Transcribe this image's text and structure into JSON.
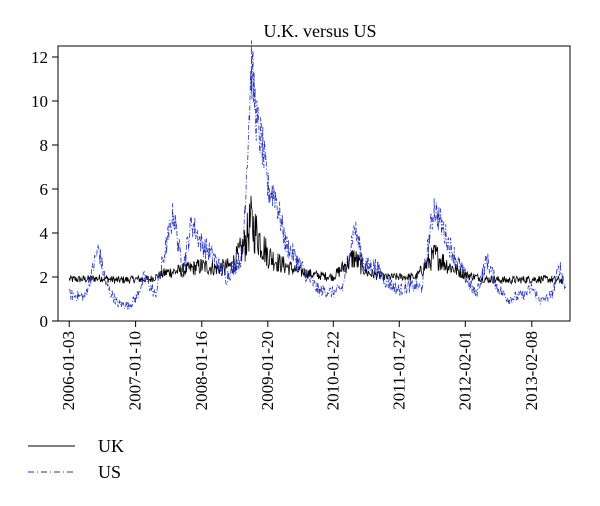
{
  "chart_data": {
    "type": "line",
    "title": "U.K. versus US",
    "xlabel": "",
    "ylabel": "",
    "ylim": [
      0,
      12.5
    ],
    "yticks": [
      0,
      2,
      4,
      6,
      8,
      10,
      12
    ],
    "xlim": [
      "2005-11-01",
      "2013-09-10"
    ],
    "xticks": [
      "2006-01-03",
      "2007-01-10",
      "2008-01-16",
      "2009-01-20",
      "2010-01-22",
      "2011-01-27",
      "2012-02-01",
      "2013-02-08"
    ],
    "grid": false,
    "legend_position": "bottom-left",
    "series": [
      {
        "name": "UK",
        "color": "#000000",
        "style": "solid",
        "points": [
          [
            "2006-01-03",
            1.9
          ],
          [
            "2006-04-01",
            1.9
          ],
          [
            "2006-07-01",
            1.95
          ],
          [
            "2006-10-01",
            1.85
          ],
          [
            "2007-01-10",
            1.9
          ],
          [
            "2007-04-01",
            1.9
          ],
          [
            "2007-07-01",
            2.2
          ],
          [
            "2007-10-01",
            2.3
          ],
          [
            "2008-01-16",
            2.5
          ],
          [
            "2008-04-01",
            2.4
          ],
          [
            "2008-07-01",
            2.5
          ],
          [
            "2008-09-15",
            3.5
          ],
          [
            "2008-10-15",
            4.5
          ],
          [
            "2008-12-01",
            3.8
          ],
          [
            "2009-01-20",
            3.0
          ],
          [
            "2009-04-01",
            2.6
          ],
          [
            "2009-07-01",
            2.3
          ],
          [
            "2009-10-01",
            2.1
          ],
          [
            "2010-01-22",
            2.0
          ],
          [
            "2010-05-15",
            2.9
          ],
          [
            "2010-08-01",
            2.2
          ],
          [
            "2010-11-01",
            2.0
          ],
          [
            "2011-01-27",
            2.0
          ],
          [
            "2011-05-01",
            2.0
          ],
          [
            "2011-08-15",
            3.0
          ],
          [
            "2011-11-01",
            2.5
          ],
          [
            "2012-02-01",
            2.1
          ],
          [
            "2012-06-01",
            1.9
          ],
          [
            "2012-10-01",
            1.85
          ],
          [
            "2013-02-08",
            1.9
          ],
          [
            "2013-05-01",
            1.9
          ],
          [
            "2013-08-01",
            1.85
          ]
        ]
      },
      {
        "name": "US",
        "color": "#1f2fbf",
        "style": "dashdot",
        "points": [
          [
            "2006-01-03",
            1.2
          ],
          [
            "2006-04-01",
            1.1
          ],
          [
            "2006-06-15",
            3.3
          ],
          [
            "2006-08-01",
            1.6
          ],
          [
            "2006-10-01",
            0.8
          ],
          [
            "2006-12-01",
            0.7
          ],
          [
            "2007-01-10",
            1.0
          ],
          [
            "2007-03-01",
            2.0
          ],
          [
            "2007-05-01",
            1.2
          ],
          [
            "2007-08-10",
            4.9
          ],
          [
            "2007-10-01",
            2.3
          ],
          [
            "2007-11-20",
            4.5
          ],
          [
            "2008-01-16",
            3.5
          ],
          [
            "2008-03-15",
            3.0
          ],
          [
            "2008-06-01",
            2.0
          ],
          [
            "2008-09-01",
            3.0
          ],
          [
            "2008-10-20",
            11.7
          ],
          [
            "2008-11-20",
            9.0
          ],
          [
            "2008-12-20",
            8.0
          ],
          [
            "2009-01-20",
            6.0
          ],
          [
            "2009-03-01",
            5.8
          ],
          [
            "2009-05-01",
            3.5
          ],
          [
            "2009-07-01",
            2.8
          ],
          [
            "2009-09-01",
            2.0
          ],
          [
            "2009-11-01",
            1.4
          ],
          [
            "2010-01-22",
            1.3
          ],
          [
            "2010-03-15",
            1.5
          ],
          [
            "2010-05-20",
            4.3
          ],
          [
            "2010-07-15",
            2.5
          ],
          [
            "2010-09-15",
            2.5
          ],
          [
            "2010-11-15",
            1.8
          ],
          [
            "2011-01-27",
            1.4
          ],
          [
            "2011-04-01",
            1.6
          ],
          [
            "2011-06-01",
            1.5
          ],
          [
            "2011-08-10",
            5.2
          ],
          [
            "2011-09-15",
            4.5
          ],
          [
            "2011-11-01",
            3.5
          ],
          [
            "2012-01-01",
            2.5
          ],
          [
            "2012-02-01",
            2.0
          ],
          [
            "2012-04-01",
            1.2
          ],
          [
            "2012-06-01",
            2.8
          ],
          [
            "2012-08-01",
            1.5
          ],
          [
            "2012-10-01",
            1.0
          ],
          [
            "2013-01-01",
            1.2
          ],
          [
            "2013-02-08",
            1.5
          ],
          [
            "2013-04-01",
            0.9
          ],
          [
            "2013-06-01",
            1.2
          ],
          [
            "2013-07-15",
            2.5
          ],
          [
            "2013-08-15",
            1.5
          ]
        ]
      }
    ]
  }
}
